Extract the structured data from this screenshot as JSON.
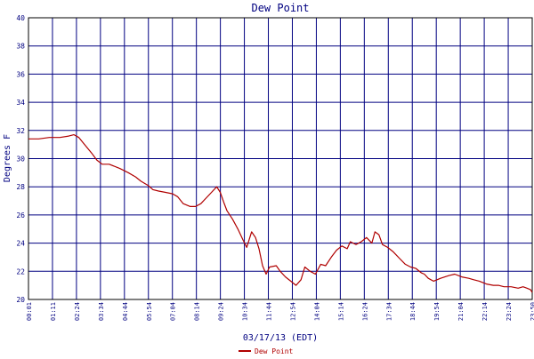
{
  "chart_data": {
    "type": "line",
    "title": "Dew Point",
    "xlabel": "03/17/13 (EDT)",
    "ylabel": "Degrees F",
    "ylim": [
      20,
      40
    ],
    "yticks": [
      20,
      22,
      24,
      26,
      28,
      30,
      32,
      34,
      36,
      38,
      40
    ],
    "xticks": [
      "00:01",
      "01:11",
      "02:24",
      "03:34",
      "04:44",
      "05:54",
      "07:04",
      "08:14",
      "09:24",
      "10:34",
      "11:44",
      "12:54",
      "14:04",
      "15:14",
      "16:24",
      "17:34",
      "18:44",
      "19:54",
      "21:04",
      "22:14",
      "23:24",
      "23:50"
    ],
    "grid": true,
    "legend": "bottom-center",
    "colors": {
      "series": "#b00000",
      "grid": "#000080",
      "text": "#000080",
      "axis": "#000000"
    },
    "series": [
      {
        "name": "Dew Point",
        "x": [
          "00:01",
          "00:30",
          "01:00",
          "01:30",
          "01:55",
          "02:10",
          "02:24",
          "02:40",
          "03:00",
          "03:15",
          "03:30",
          "03:50",
          "04:20",
          "04:44",
          "05:05",
          "05:20",
          "05:40",
          "05:54",
          "06:10",
          "06:30",
          "06:50",
          "07:04",
          "07:20",
          "07:40",
          "07:55",
          "08:10",
          "08:25",
          "08:40",
          "08:55",
          "09:05",
          "09:15",
          "09:24",
          "09:40",
          "09:55",
          "10:10",
          "10:20",
          "10:34",
          "10:45",
          "10:55",
          "11:05",
          "11:15",
          "11:25",
          "11:44",
          "11:55",
          "12:10",
          "12:25",
          "12:40",
          "12:54",
          "13:05",
          "13:20",
          "13:35",
          "13:50",
          "14:04",
          "14:20",
          "14:35",
          "14:50",
          "15:05",
          "15:14",
          "15:30",
          "15:45",
          "16:00",
          "16:15",
          "16:24",
          "16:35",
          "16:45",
          "17:00",
          "17:15",
          "17:34",
          "17:50",
          "18:05",
          "18:20",
          "18:35",
          "18:44",
          "18:55",
          "19:10",
          "19:30",
          "19:54",
          "20:10",
          "20:30",
          "20:50",
          "21:04",
          "21:20",
          "21:40",
          "22:00",
          "22:14",
          "22:30",
          "22:50",
          "23:10",
          "23:24",
          "23:35",
          "23:45",
          "23:50"
        ],
        "values": [
          31.4,
          31.4,
          31.5,
          31.5,
          31.6,
          31.7,
          31.5,
          31.0,
          30.4,
          29.9,
          29.6,
          29.6,
          29.3,
          29.0,
          28.7,
          28.4,
          28.1,
          27.8,
          27.7,
          27.6,
          27.5,
          27.3,
          26.8,
          26.6,
          26.6,
          26.8,
          27.2,
          27.6,
          28.0,
          27.6,
          26.9,
          26.3,
          25.7,
          25.0,
          24.2,
          23.7,
          24.8,
          24.4,
          23.6,
          22.4,
          21.8,
          22.3,
          22.4,
          22.0,
          21.6,
          21.3,
          21.0,
          21.4,
          22.3,
          22.0,
          21.8,
          22.5,
          22.4,
          23.0,
          23.5,
          23.8,
          23.6,
          24.1,
          23.9,
          24.1,
          24.4,
          24.0,
          24.8,
          24.6,
          23.9,
          23.7,
          23.4,
          22.9,
          22.5,
          22.3,
          22.2,
          21.9,
          21.8,
          21.5,
          21.3,
          21.5,
          21.7,
          21.8,
          21.6,
          21.5,
          21.4,
          21.3,
          21.1,
          21.0,
          21.0,
          20.9,
          20.9,
          20.8,
          20.9,
          20.8,
          20.7,
          20.5
        ]
      }
    ]
  }
}
